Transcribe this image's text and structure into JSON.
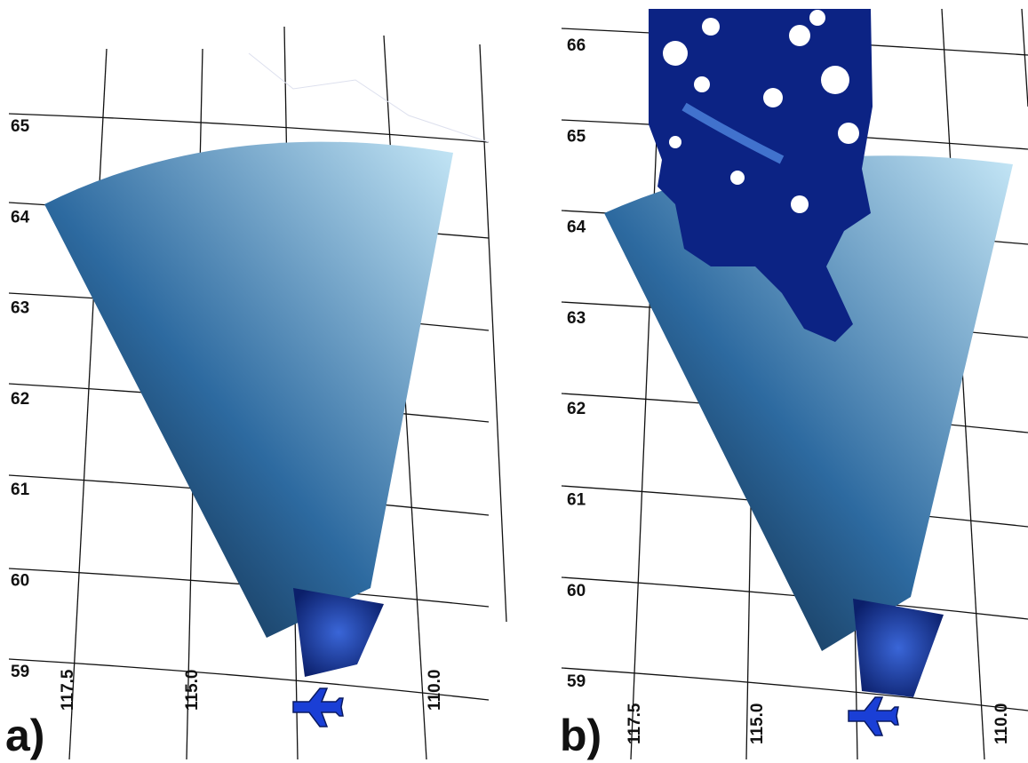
{
  "panels": [
    {
      "label": "a)",
      "latitude_labels": [
        "65",
        "64",
        "63",
        "62",
        "61",
        "60",
        "59"
      ],
      "longitude_labels": [
        "117.5",
        "115.0",
        "110.0"
      ]
    },
    {
      "label": "b)",
      "latitude_labels": [
        "66",
        "65",
        "64",
        "63",
        "62",
        "61",
        "60",
        "59"
      ],
      "longitude_labels": [
        "117.5",
        "115.0",
        "110.0"
      ]
    }
  ]
}
